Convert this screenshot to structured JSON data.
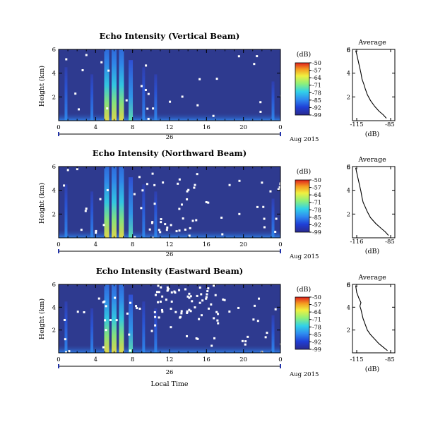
{
  "figure": {
    "date_label": "Aug 2015",
    "xlabel_bottom": "Local Time",
    "colorbar_title": "(dB)",
    "colorbar_ticks": [
      "-50",
      "-57",
      "-64",
      "-71",
      "-78",
      "-85",
      "-92",
      "-99"
    ],
    "profile_title": "Average",
    "profile_xlabel": "(dB)"
  },
  "panels": [
    {
      "title": "Echo Intensity (Vertical Beam)",
      "ylabel": "Height (km)",
      "day_label": "26",
      "profile_xticks": [
        "-115",
        "-85"
      ]
    },
    {
      "title": "Echo Intensity (Northward Beam)",
      "ylabel": "Height (km)",
      "day_label": "26",
      "profile_xticks": [
        "-116",
        "-85"
      ]
    },
    {
      "title": "Echo Intensity (Eastward Beam)",
      "ylabel": "Height (km)",
      "day_label": "26",
      "profile_xticks": [
        "-115",
        "-85"
      ]
    }
  ],
  "chart_data": [
    {
      "type": "heatmap",
      "title": "Echo Intensity (Vertical Beam)",
      "xlabel": "",
      "ylabel": "Height (km)",
      "xticks": [
        "0",
        "4",
        "8",
        "12",
        "16",
        "20",
        "0"
      ],
      "yticks": [
        "2",
        "4",
        "6"
      ],
      "xlim": [
        0,
        24
      ],
      "ylim": [
        0,
        6
      ],
      "colorbar": {
        "label": "(dB)",
        "range": [
          -99,
          -50
        ],
        "ticks": [
          -50,
          -57,
          -64,
          -71,
          -78,
          -85,
          -92,
          -99
        ]
      },
      "strong_echo_hours": [
        0.8,
        3.6,
        5.2,
        6.0,
        6.8,
        7.8,
        9.2,
        10.5,
        23.2
      ]
    },
    {
      "type": "heatmap",
      "title": "Echo Intensity (Northward Beam)",
      "xlabel": "",
      "ylabel": "Height (km)",
      "xticks": [
        "0",
        "4",
        "8",
        "12",
        "16",
        "20",
        "0"
      ],
      "yticks": [
        "2",
        "4",
        "6"
      ],
      "xlim": [
        0,
        24
      ],
      "ylim": [
        0,
        6
      ],
      "colorbar": {
        "label": "(dB)",
        "range": [
          -99,
          -50
        ],
        "ticks": [
          -50,
          -57,
          -64,
          -71,
          -78,
          -85,
          -92,
          -99
        ]
      },
      "strong_echo_hours": [
        0.8,
        3.6,
        5.2,
        6.0,
        6.8,
        7.8,
        9.2,
        10.5,
        23.2
      ]
    },
    {
      "type": "heatmap",
      "title": "Echo Intensity (Eastward Beam)",
      "xlabel": "Local Time",
      "ylabel": "Height (km)",
      "xticks": [
        "0",
        "4",
        "8",
        "12",
        "16",
        "20",
        "0"
      ],
      "yticks": [
        "2",
        "4",
        "6"
      ],
      "xlim": [
        0,
        24
      ],
      "ylim": [
        0,
        6
      ],
      "colorbar": {
        "label": "(dB)",
        "range": [
          -99,
          -50
        ],
        "ticks": [
          -50,
          -57,
          -64,
          -71,
          -78,
          -85,
          -92,
          -99
        ]
      },
      "strong_echo_hours": [
        0.8,
        3.6,
        5.2,
        6.0,
        6.8,
        7.8,
        9.2,
        10.5,
        23.2
      ]
    },
    {
      "type": "line",
      "title": "Average",
      "xlabel": "(dB)",
      "ylabel": "",
      "xticks": [
        "-115",
        "-85"
      ],
      "yticks": [
        "2",
        "4",
        "6"
      ],
      "xlim": [
        -120,
        -80
      ],
      "ylim": [
        0,
        6
      ],
      "x": [
        -88,
        -91,
        -95,
        -99,
        -103,
        -106,
        -108,
        -109,
        -111,
        -112,
        -113,
        -114,
        -115,
        -116,
        -117
      ],
      "y": [
        0.2,
        0.5,
        0.8,
        1.2,
        1.7,
        2.2,
        2.7,
        3.0,
        3.5,
        4.0,
        4.4,
        4.8,
        5.2,
        5.6,
        5.9
      ]
    },
    {
      "type": "line",
      "title": "Average",
      "xlabel": "(dB)",
      "ylabel": "",
      "xticks": [
        "-116",
        "-85"
      ],
      "yticks": [
        "2",
        "4",
        "6"
      ],
      "xlim": [
        -120,
        -80
      ],
      "ylim": [
        0,
        6
      ],
      "x": [
        -86,
        -89,
        -93,
        -98,
        -103,
        -106,
        -108,
        -110,
        -111,
        -112,
        -113,
        -114,
        -115,
        -116,
        -117
      ],
      "y": [
        0.2,
        0.5,
        0.8,
        1.2,
        1.7,
        2.2,
        2.6,
        3.0,
        3.4,
        3.9,
        4.3,
        4.7,
        5.1,
        5.5,
        5.9
      ]
    },
    {
      "type": "line",
      "title": "Average",
      "xlabel": "(dB)",
      "ylabel": "",
      "xticks": [
        "-115",
        "-85"
      ],
      "yticks": [
        "2",
        "4",
        "6"
      ],
      "xlim": [
        -120,
        -80
      ],
      "ylim": [
        0,
        6
      ],
      "x": [
        -87,
        -91,
        -95,
        -99,
        -103,
        -106,
        -108,
        -110,
        -111,
        -112,
        -113,
        -112,
        -114,
        -116,
        -117
      ],
      "y": [
        0.2,
        0.5,
        0.8,
        1.2,
        1.6,
        2.0,
        2.5,
        3.0,
        3.4,
        3.8,
        4.1,
        4.4,
        4.8,
        5.3,
        5.9
      ]
    }
  ]
}
